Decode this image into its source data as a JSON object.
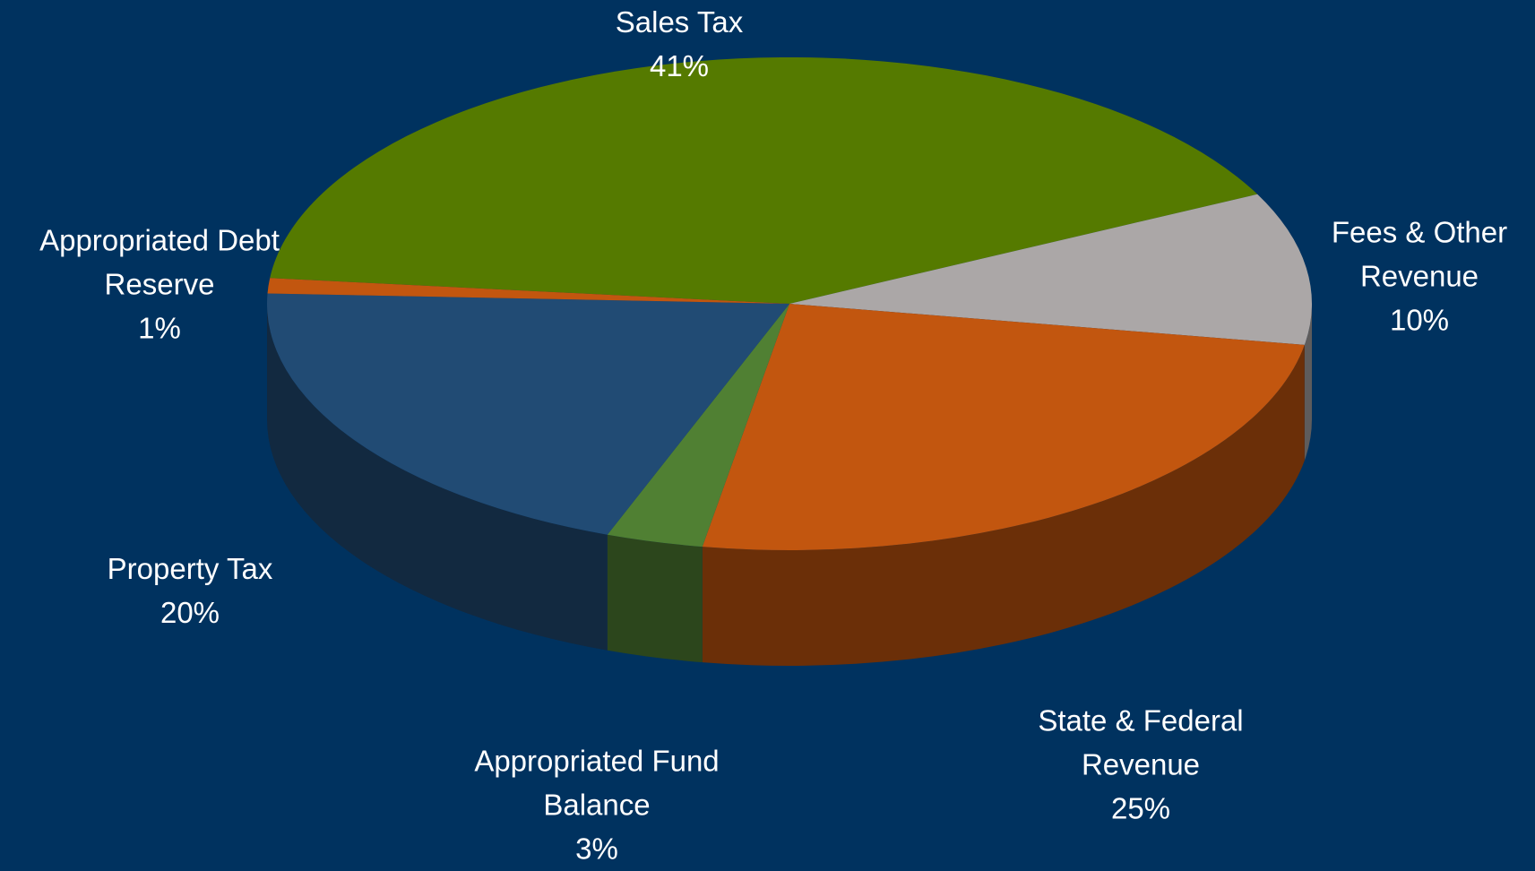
{
  "chart_data": {
    "type": "pie",
    "categories": [
      "Sales Tax",
      "Fees & Other Revenue",
      "State & Federal Revenue",
      "Appropriated Fund Balance",
      "Property Tax",
      "Appropriated Debt Reserve"
    ],
    "values": [
      41,
      10,
      25,
      3,
      20,
      1
    ],
    "value_labels": [
      "41%",
      "10%",
      "25%",
      "3%",
      "20%",
      "1%"
    ],
    "colors": [
      "#557a00",
      "#aba7a7",
      "#c2560f",
      "#508033",
      "#214b74",
      "#c2560f"
    ]
  }
}
